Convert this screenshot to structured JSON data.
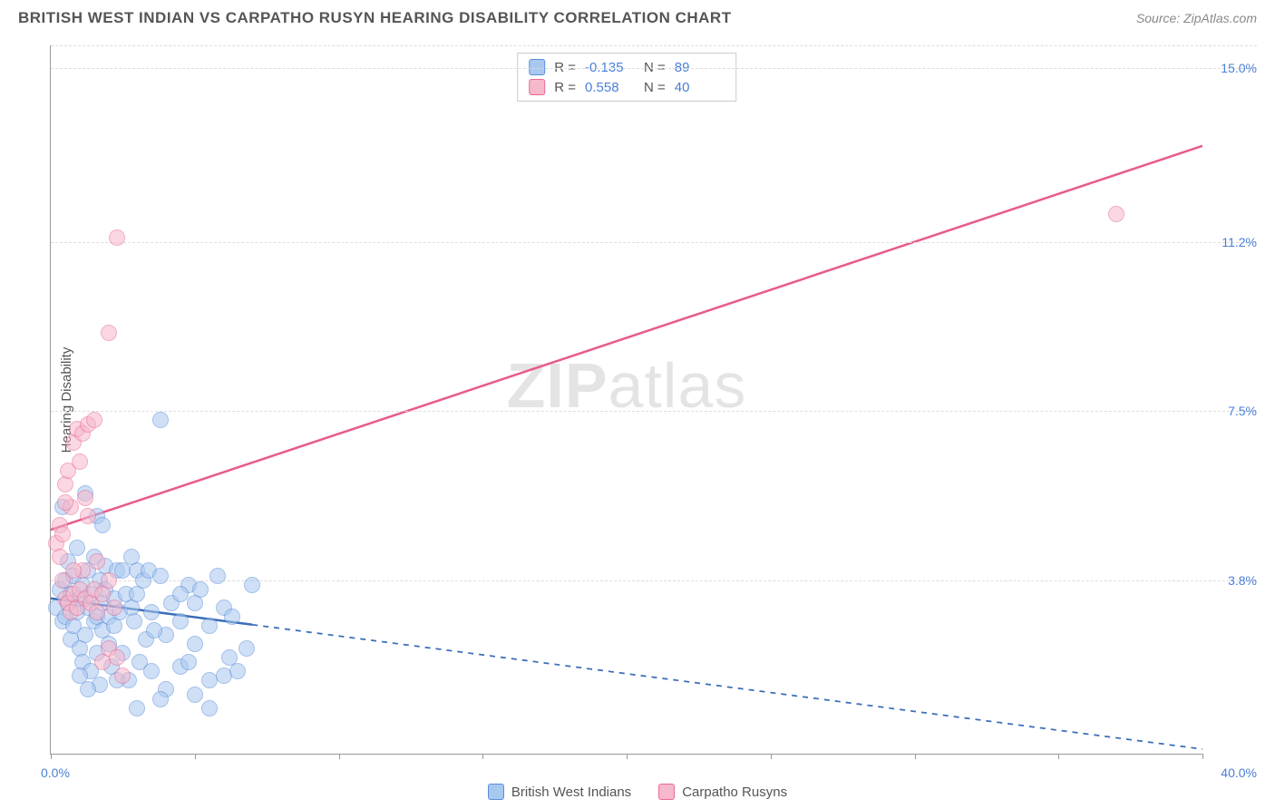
{
  "title": "BRITISH WEST INDIAN VS CARPATHO RUSYN HEARING DISABILITY CORRELATION CHART",
  "source": "Source: ZipAtlas.com",
  "watermark_zip": "ZIP",
  "watermark_atlas": "atlas",
  "ylabel": "Hearing Disability",
  "xlim": [
    0,
    40
  ],
  "ylim": [
    0,
    15.5
  ],
  "x_tick_min_label": "0.0%",
  "x_tick_max_label": "40.0%",
  "x_ticks": [
    0,
    5,
    10,
    15,
    20,
    25,
    30,
    35,
    40
  ],
  "y_gridlines": [
    {
      "value": 15.0,
      "label": "15.0%"
    },
    {
      "value": 11.2,
      "label": "11.2%"
    },
    {
      "value": 7.5,
      "label": "7.5%"
    },
    {
      "value": 3.8,
      "label": "3.8%"
    }
  ],
  "series": [
    {
      "name": "British West Indians",
      "key": "bwi",
      "fill": "#a8c8f0",
      "stroke": "#5a8dd8",
      "fill_opacity": 0.55,
      "marker_size": 18,
      "R": "-0.135",
      "N": "89",
      "trend": {
        "x1": 0,
        "y1": 3.4,
        "x2": 40,
        "y2": 0.1,
        "solid_until_x": 7,
        "color": "#3a6db8",
        "width": 2.5
      },
      "points": [
        [
          0.2,
          3.2
        ],
        [
          0.3,
          3.6
        ],
        [
          0.4,
          2.9
        ],
        [
          0.5,
          3.8
        ],
        [
          0.5,
          3.0
        ],
        [
          0.6,
          3.3
        ],
        [
          0.6,
          4.2
        ],
        [
          0.7,
          2.5
        ],
        [
          0.7,
          3.5
        ],
        [
          0.8,
          2.8
        ],
        [
          0.8,
          3.9
        ],
        [
          0.9,
          3.1
        ],
        [
          0.9,
          4.5
        ],
        [
          1.0,
          2.3
        ],
        [
          1.0,
          3.4
        ],
        [
          1.1,
          2.0
        ],
        [
          1.1,
          3.7
        ],
        [
          1.2,
          5.7
        ],
        [
          1.2,
          2.6
        ],
        [
          1.3,
          3.2
        ],
        [
          1.3,
          4.0
        ],
        [
          1.4,
          1.8
        ],
        [
          1.4,
          3.5
        ],
        [
          1.5,
          2.9
        ],
        [
          1.5,
          4.3
        ],
        [
          1.6,
          3.0
        ],
        [
          1.6,
          2.2
        ],
        [
          1.7,
          3.8
        ],
        [
          1.7,
          1.5
        ],
        [
          1.8,
          3.3
        ],
        [
          1.8,
          2.7
        ],
        [
          1.9,
          4.1
        ],
        [
          1.9,
          3.6
        ],
        [
          2.0,
          2.4
        ],
        [
          2.0,
          3.0
        ],
        [
          2.1,
          1.9
        ],
        [
          2.2,
          3.4
        ],
        [
          2.2,
          2.8
        ],
        [
          2.3,
          4.0
        ],
        [
          2.4,
          3.1
        ],
        [
          2.5,
          2.2
        ],
        [
          2.5,
          4.0
        ],
        [
          2.6,
          3.5
        ],
        [
          2.7,
          1.6
        ],
        [
          2.8,
          3.2
        ],
        [
          2.9,
          2.9
        ],
        [
          3.0,
          4.0
        ],
        [
          3.0,
          3.5
        ],
        [
          3.1,
          2.0
        ],
        [
          3.2,
          3.8
        ],
        [
          3.3,
          2.5
        ],
        [
          3.4,
          4.0
        ],
        [
          3.5,
          1.8
        ],
        [
          3.5,
          3.1
        ],
        [
          3.8,
          3.9
        ],
        [
          3.8,
          7.3
        ],
        [
          4.0,
          2.6
        ],
        [
          4.0,
          1.4
        ],
        [
          4.2,
          3.3
        ],
        [
          4.5,
          1.9
        ],
        [
          4.5,
          2.9
        ],
        [
          4.8,
          3.7
        ],
        [
          5.0,
          2.4
        ],
        [
          5.0,
          1.3
        ],
        [
          5.2,
          3.6
        ],
        [
          5.5,
          1.6
        ],
        [
          5.5,
          2.8
        ],
        [
          5.8,
          3.9
        ],
        [
          6.0,
          1.7
        ],
        [
          6.0,
          3.2
        ],
        [
          6.2,
          2.1
        ],
        [
          6.5,
          1.8
        ],
        [
          6.8,
          2.3
        ],
        [
          7.0,
          3.7
        ],
        [
          3.0,
          1.0
        ],
        [
          3.8,
          1.2
        ],
        [
          5.5,
          1.0
        ],
        [
          5.0,
          3.3
        ],
        [
          2.8,
          4.3
        ],
        [
          1.6,
          5.2
        ],
        [
          0.4,
          5.4
        ],
        [
          1.0,
          1.7
        ],
        [
          1.3,
          1.4
        ],
        [
          2.3,
          1.6
        ],
        [
          4.5,
          3.5
        ],
        [
          3.6,
          2.7
        ],
        [
          4.8,
          2.0
        ],
        [
          6.3,
          3.0
        ],
        [
          1.8,
          5.0
        ]
      ]
    },
    {
      "name": "Carpatho Rusyns",
      "key": "cr",
      "fill": "#f6b8cb",
      "stroke": "#e86a94",
      "fill_opacity": 0.55,
      "marker_size": 18,
      "R": "0.558",
      "N": "40",
      "trend": {
        "x1": 0,
        "y1": 4.9,
        "x2": 40,
        "y2": 13.3,
        "solid_until_x": 40,
        "color": "#e85a88",
        "width": 2.5
      },
      "points": [
        [
          0.2,
          4.6
        ],
        [
          0.3,
          4.3
        ],
        [
          0.3,
          5.0
        ],
        [
          0.4,
          3.8
        ],
        [
          0.4,
          4.8
        ],
        [
          0.5,
          3.4
        ],
        [
          0.5,
          5.9
        ],
        [
          0.6,
          3.3
        ],
        [
          0.6,
          6.2
        ],
        [
          0.7,
          3.1
        ],
        [
          0.7,
          5.4
        ],
        [
          0.8,
          3.5
        ],
        [
          0.8,
          6.8
        ],
        [
          0.9,
          3.2
        ],
        [
          0.9,
          7.1
        ],
        [
          1.0,
          3.6
        ],
        [
          1.0,
          6.4
        ],
        [
          1.1,
          4.0
        ],
        [
          1.1,
          7.0
        ],
        [
          1.2,
          3.4
        ],
        [
          1.2,
          5.6
        ],
        [
          1.3,
          7.2
        ],
        [
          1.4,
          3.3
        ],
        [
          1.5,
          3.6
        ],
        [
          1.5,
          7.3
        ],
        [
          1.6,
          4.2
        ],
        [
          1.8,
          3.5
        ],
        [
          2.0,
          2.3
        ],
        [
          2.0,
          3.8
        ],
        [
          2.2,
          3.2
        ],
        [
          2.3,
          2.1
        ],
        [
          2.5,
          1.7
        ],
        [
          1.8,
          2.0
        ],
        [
          2.3,
          11.3
        ],
        [
          2.0,
          9.2
        ],
        [
          0.5,
          5.5
        ],
        [
          1.3,
          5.2
        ],
        [
          0.8,
          4.0
        ],
        [
          1.6,
          3.1
        ],
        [
          37.0,
          11.8
        ]
      ]
    }
  ],
  "rn_labels": {
    "R": "R",
    "N": "N",
    "eq": "="
  },
  "colors": {
    "title": "#555555",
    "source": "#888888",
    "axis": "#999999",
    "grid": "#dddddd",
    "tick_text": "#4a7fd8",
    "background": "#ffffff"
  }
}
